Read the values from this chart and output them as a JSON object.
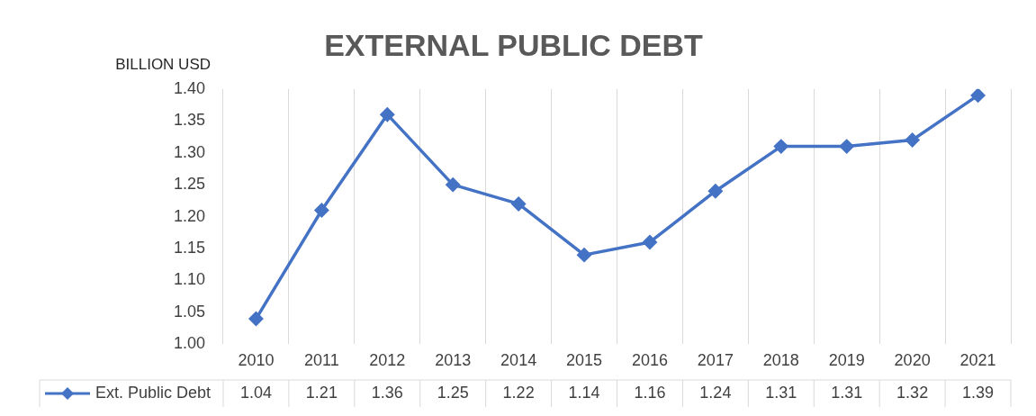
{
  "chart_data": {
    "type": "line",
    "title": "EXTERNAL PUBLIC DEBT",
    "ylabel": "BILLION USD",
    "categories": [
      "2010",
      "2011",
      "2012",
      "2013",
      "2014",
      "2015",
      "2016",
      "2017",
      "2018",
      "2019",
      "2020",
      "2021"
    ],
    "series": [
      {
        "name": "Ext. Public Debt",
        "color": "#4472c4",
        "values": [
          1.04,
          1.21,
          1.36,
          1.25,
          1.22,
          1.14,
          1.16,
          1.24,
          1.31,
          1.31,
          1.32,
          1.39
        ]
      }
    ],
    "ylim": [
      1.0,
      1.4
    ],
    "yticks": [
      {
        "value": 1.0,
        "label": "1.00"
      },
      {
        "value": 1.05,
        "label": "1.05"
      },
      {
        "value": 1.1,
        "label": "1.10"
      },
      {
        "value": 1.15,
        "label": "1.15"
      },
      {
        "value": 1.2,
        "label": "1.20"
      },
      {
        "value": 1.25,
        "label": "1.25"
      },
      {
        "value": 1.3,
        "label": "1.30"
      },
      {
        "value": 1.35,
        "label": "1.35"
      },
      {
        "value": 1.4,
        "label": "1.40"
      }
    ],
    "grid": "x",
    "legend": "bottom",
    "marker": "diamond",
    "line_style": "solid",
    "data_labels": true
  }
}
